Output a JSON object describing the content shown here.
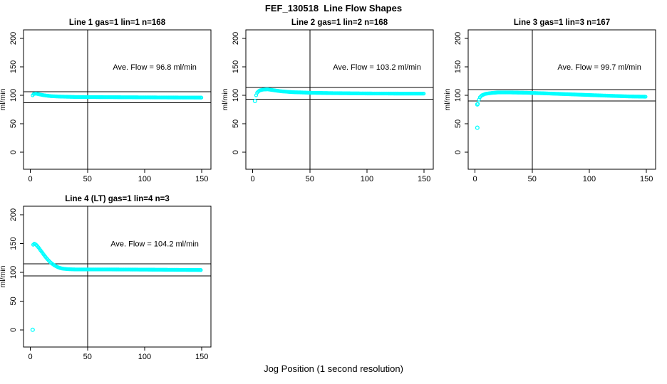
{
  "page": {
    "title": "FEF_130518  Line Flow Shapes",
    "xlabel": "Jog Position (1 second resolution)",
    "background": "#ffffff"
  },
  "colors": {
    "points": "#00ffff",
    "axis": "#000000",
    "text": "#000000"
  },
  "axes": {
    "x_ticks": [
      0,
      50,
      100,
      150
    ],
    "y_ticks": [
      0,
      50,
      100,
      150,
      200
    ],
    "ylabel": "ml/min",
    "xlim_display": [
      -6,
      158
    ],
    "ylim_display": [
      -30,
      215
    ]
  },
  "chart_data": [
    {
      "type": "scatter",
      "title": "Line 1 gas=1 lin=1 n=168",
      "n": 168,
      "ave_flow": 96.8,
      "ave_flow_label": "Ave. Flow =  96.8  ml/min",
      "ref_vline_x": 50,
      "ref_hlines": [
        106.5,
        87.1
      ],
      "point_step": 0.9,
      "curve_anchors": [
        [
          2,
          100
        ],
        [
          3,
          102.5
        ],
        [
          5,
          103
        ],
        [
          8,
          101.5
        ],
        [
          12,
          100
        ],
        [
          18,
          98.5
        ],
        [
          25,
          97.8
        ],
        [
          40,
          97
        ],
        [
          60,
          96.8
        ],
        [
          90,
          96.5
        ],
        [
          120,
          96.2
        ],
        [
          150,
          96
        ]
      ],
      "outliers": []
    },
    {
      "type": "scatter",
      "title": "Line 2 gas=1 lin=2 n=168",
      "n": 168,
      "ave_flow": 103.2,
      "ave_flow_label": "Ave. Flow =  103.2  ml/min",
      "ref_vline_x": 50,
      "ref_hlines": [
        113.5,
        92.9
      ],
      "point_step": 0.9,
      "curve_anchors": [
        [
          3,
          100
        ],
        [
          4,
          105
        ],
        [
          6,
          108.5
        ],
        [
          9,
          110
        ],
        [
          13,
          110.5
        ],
        [
          18,
          109
        ],
        [
          25,
          107
        ],
        [
          35,
          105.5
        ],
        [
          50,
          104.5
        ],
        [
          70,
          103.8
        ],
        [
          100,
          103.2
        ],
        [
          130,
          103
        ],
        [
          150,
          103
        ]
      ],
      "outliers": [
        [
          2,
          90
        ]
      ]
    },
    {
      "type": "scatter",
      "title": "Line 3 gas=1 lin=3 n=167",
      "n": 167,
      "ave_flow": 99.7,
      "ave_flow_label": "Ave. Flow =  99.7  ml/min",
      "ref_vline_x": 50,
      "ref_hlines": [
        109.7,
        89.7
      ],
      "point_step": 0.9,
      "curve_anchors": [
        [
          2.5,
          85
        ],
        [
          3,
          90
        ],
        [
          4,
          96
        ],
        [
          6,
          100
        ],
        [
          9,
          102.5
        ],
        [
          14,
          104
        ],
        [
          20,
          105
        ],
        [
          30,
          105
        ],
        [
          45,
          104.5
        ],
        [
          60,
          103.5
        ],
        [
          80,
          102
        ],
        [
          100,
          100.5
        ],
        [
          120,
          99
        ],
        [
          135,
          98
        ],
        [
          150,
          97.5
        ]
      ],
      "outliers": [
        [
          2,
          84
        ],
        [
          2,
          43
        ]
      ]
    },
    {
      "type": "scatter",
      "title": "Line 4 (LT) gas=1 lin=4 n=3",
      "n": 3,
      "ave_flow": 104.2,
      "ave_flow_label": "Ave. Flow =  104.2  ml/min",
      "ref_vline_x": 50,
      "ref_hlines": [
        114.6,
        93.8
      ],
      "point_step": 0.9,
      "curve_anchors": [
        [
          2.5,
          148
        ],
        [
          3,
          150
        ],
        [
          4,
          149.5
        ],
        [
          5,
          148
        ],
        [
          6,
          146
        ],
        [
          7,
          143.5
        ],
        [
          8,
          141
        ],
        [
          9,
          138
        ],
        [
          10,
          135.5
        ],
        [
          12,
          130
        ],
        [
          14,
          125
        ],
        [
          16,
          120.5
        ],
        [
          18,
          116.5
        ],
        [
          20,
          113.5
        ],
        [
          22,
          111
        ],
        [
          24,
          109
        ],
        [
          26,
          107.5
        ],
        [
          28,
          106.5
        ],
        [
          30,
          106
        ],
        [
          34,
          105.4
        ],
        [
          40,
          105
        ],
        [
          50,
          105
        ],
        [
          70,
          105
        ],
        [
          90,
          104.8
        ],
        [
          110,
          104.6
        ],
        [
          130,
          104.3
        ],
        [
          150,
          104
        ]
      ],
      "outliers": [
        [
          2,
          0
        ]
      ]
    }
  ]
}
